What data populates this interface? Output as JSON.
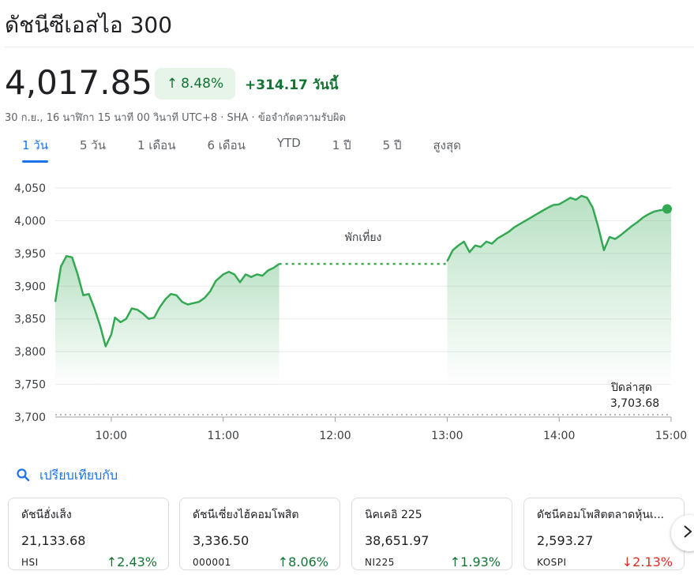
{
  "header": {
    "title": "ดัชนีซีเอสไอ 300",
    "price": "4,017.85",
    "pct_change": "8.48%",
    "abs_change": "+314.17 วันนี้",
    "subinfo": "30 ก.ย., 16 นาฬิกา 15 นาที 00 วินาที UTC+8 · SHA · ข้อจำกัดความรับผิด"
  },
  "tabs": [
    {
      "label": "1 วัน",
      "active": true
    },
    {
      "label": "5 วัน",
      "active": false
    },
    {
      "label": "1 เดือน",
      "active": false
    },
    {
      "label": "6 เดือน",
      "active": false
    },
    {
      "label": "YTD",
      "active": false
    },
    {
      "label": "1 ปี",
      "active": false
    },
    {
      "label": "5 ปี",
      "active": false
    },
    {
      "label": "สูงสุด",
      "active": false
    }
  ],
  "chart_data": {
    "type": "area",
    "y_ticks": [
      "4,050",
      "4,000",
      "3,950",
      "3,900",
      "3,850",
      "3,800",
      "3,750",
      "3,700"
    ],
    "ylim": [
      3700,
      4050
    ],
    "x_ticks": [
      "10:00",
      "11:00",
      "12:00",
      "13:00",
      "14:00",
      "15:00"
    ],
    "break_label": "พักเที่ยง",
    "prev_close_label": "ปิดล่าสุด",
    "prev_close_value_text": "3,703.68",
    "prev_close": 3703.68,
    "color": "#34a853",
    "morning": [
      [
        "9:30",
        3876
      ],
      [
        "9:33",
        3930
      ],
      [
        "9:36",
        3946
      ],
      [
        "9:39",
        3944
      ],
      [
        "9:42",
        3918
      ],
      [
        "9:45",
        3886
      ],
      [
        "9:48",
        3888
      ],
      [
        "9:51",
        3866
      ],
      [
        "9:54",
        3840
      ],
      [
        "9:57",
        3808
      ],
      [
        "10:00",
        3826
      ],
      [
        "10:02",
        3852
      ],
      [
        "10:05",
        3845
      ],
      [
        "10:08",
        3850
      ],
      [
        "10:11",
        3866
      ],
      [
        "10:14",
        3864
      ],
      [
        "10:17",
        3858
      ],
      [
        "10:20",
        3850
      ],
      [
        "10:23",
        3852
      ],
      [
        "10:26",
        3868
      ],
      [
        "10:29",
        3880
      ],
      [
        "10:32",
        3888
      ],
      [
        "10:35",
        3886
      ],
      [
        "10:38",
        3876
      ],
      [
        "10:41",
        3872
      ],
      [
        "10:44",
        3874
      ],
      [
        "10:47",
        3876
      ],
      [
        "10:50",
        3882
      ],
      [
        "10:53",
        3892
      ],
      [
        "10:56",
        3908
      ],
      [
        "11:00",
        3918
      ],
      [
        "11:03",
        3922
      ],
      [
        "11:06",
        3918
      ],
      [
        "11:09",
        3906
      ],
      [
        "11:12",
        3918
      ],
      [
        "11:15",
        3914
      ],
      [
        "11:18",
        3918
      ],
      [
        "11:21",
        3916
      ],
      [
        "11:24",
        3924
      ],
      [
        "11:27",
        3928
      ],
      [
        "11:30",
        3934
      ]
    ],
    "afternoon": [
      [
        "13:00",
        3938
      ],
      [
        "13:03",
        3955
      ],
      [
        "13:06",
        3962
      ],
      [
        "13:09",
        3968
      ],
      [
        "13:12",
        3952
      ],
      [
        "13:15",
        3962
      ],
      [
        "13:18",
        3960
      ],
      [
        "13:21",
        3968
      ],
      [
        "13:24",
        3965
      ],
      [
        "13:27",
        3973
      ],
      [
        "13:30",
        3978
      ],
      [
        "13:33",
        3983
      ],
      [
        "13:36",
        3990
      ],
      [
        "13:39",
        3995
      ],
      [
        "13:42",
        4000
      ],
      [
        "13:45",
        4005
      ],
      [
        "13:48",
        4010
      ],
      [
        "13:51",
        4015
      ],
      [
        "13:54",
        4020
      ],
      [
        "13:57",
        4024
      ],
      [
        "14:00",
        4025
      ],
      [
        "14:03",
        4030
      ],
      [
        "14:06",
        4035
      ],
      [
        "14:09",
        4032
      ],
      [
        "14:12",
        4038
      ],
      [
        "14:15",
        4035
      ],
      [
        "14:18",
        4020
      ],
      [
        "14:21",
        3990
      ],
      [
        "14:24",
        3955
      ],
      [
        "14:27",
        3975
      ],
      [
        "14:30",
        3972
      ],
      [
        "14:33",
        3978
      ],
      [
        "14:36",
        3985
      ],
      [
        "14:39",
        3992
      ],
      [
        "14:42",
        3998
      ],
      [
        "14:45",
        4005
      ],
      [
        "14:48",
        4010
      ],
      [
        "14:51",
        4014
      ],
      [
        "14:54",
        4016
      ],
      [
        "14:57",
        4017
      ],
      [
        "15:00",
        4018
      ]
    ]
  },
  "compare": {
    "label": "เปรียบเทียบกับ"
  },
  "cards": [
    {
      "name": "ดัชนีฮั่งเส็ง",
      "value": "21,133.68",
      "symbol": "HSI",
      "pct": "2.43%",
      "dir": "up"
    },
    {
      "name": "ดัชนีเซี่ยงไฮ้คอมโพสิต",
      "value": "3,336.50",
      "symbol": "000001",
      "pct": "8.06%",
      "dir": "up"
    },
    {
      "name": "นิคเคอิ 225",
      "value": "38,651.97",
      "symbol": "NI225",
      "pct": "1.93%",
      "dir": "up"
    },
    {
      "name": "ดัชนีคอมโพสิตตลาดหุ้นเ...",
      "value": "2,593.27",
      "symbol": "KOSPI",
      "pct": "2.13%",
      "dir": "down"
    }
  ],
  "icons": {
    "search": "search-icon",
    "next": "chevron-right-icon"
  }
}
